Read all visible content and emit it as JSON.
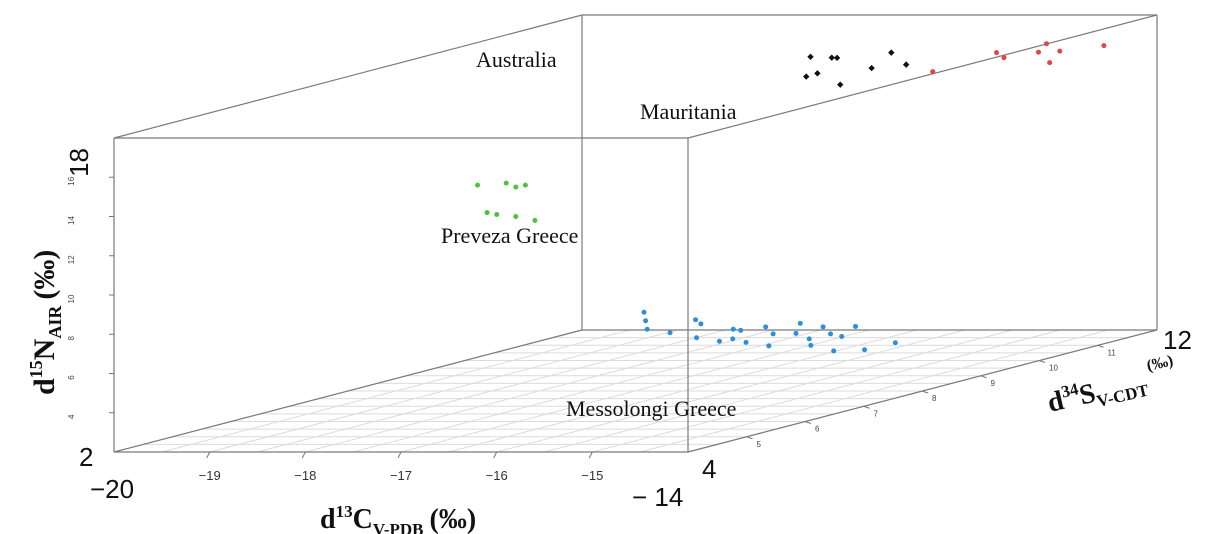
{
  "chart_data": {
    "type": "scatter3d",
    "x_axis": {
      "label_prefix": "d",
      "label_sup": "13",
      "label_main": "C",
      "label_sub": "V-PDB",
      "label_unit": "(‰)",
      "ticks": [
        "−19",
        "−18",
        "−17",
        "−16",
        "−15"
      ],
      "end_left": "−20",
      "end_right": "− 14",
      "range": [
        -20,
        -14
      ]
    },
    "y_axis": {
      "label_prefix": "d",
      "label_sup": "34",
      "label_main": "S",
      "label_sub": "V-CDT",
      "label_unit": "(‰)",
      "ticks": [
        "5",
        "6",
        "7",
        "8",
        "9",
        "10",
        "11"
      ],
      "end_low": "4",
      "end_high": "12",
      "range": [
        4,
        12
      ]
    },
    "z_axis": {
      "label_prefix": "d",
      "label_sup": "15",
      "label_main": "N",
      "label_sub": "AIR",
      "label_unit": "(‰)",
      "ticks": [
        "4",
        "6",
        "8",
        "10",
        "12",
        "14",
        "16"
      ],
      "end_low": "2",
      "end_high": "18",
      "range": [
        2,
        18
      ]
    },
    "grid": "floor",
    "groups": [
      {
        "name": "Australia",
        "color": "#111111",
        "marker": "diamond",
        "points": [
          {
            "x": -17.0,
            "y": 11.0,
            "z": 16.7
          },
          {
            "x": -16.9,
            "y": 11.2,
            "z": 16.5
          },
          {
            "x": -16.8,
            "y": 10.6,
            "z": 16.0
          },
          {
            "x": -16.6,
            "y": 10.8,
            "z": 16.8
          },
          {
            "x": -16.5,
            "y": 10.3,
            "z": 16.4
          },
          {
            "x": -16.4,
            "y": 11.4,
            "z": 16.6
          },
          {
            "x": -16.3,
            "y": 10.9,
            "z": 16.2
          },
          {
            "x": -16.2,
            "y": 10.2,
            "z": 15.9
          },
          {
            "x": -16.0,
            "y": 11.0,
            "z": 16.3
          }
        ]
      },
      {
        "name": "Mauritania",
        "color": "#e0444e",
        "marker": "dot",
        "points": [
          {
            "x": -15.6,
            "y": 10.8,
            "z": 16.1
          },
          {
            "x": -15.3,
            "y": 11.4,
            "z": 16.6
          },
          {
            "x": -15.1,
            "y": 11.2,
            "z": 16.5
          },
          {
            "x": -14.9,
            "y": 11.6,
            "z": 16.9
          },
          {
            "x": -14.8,
            "y": 11.3,
            "z": 16.7
          },
          {
            "x": -14.7,
            "y": 11.5,
            "z": 16.6
          },
          {
            "x": -14.5,
            "y": 11.0,
            "z": 16.4
          },
          {
            "x": -14.3,
            "y": 11.6,
            "z": 16.8
          }
        ]
      },
      {
        "name": "Preveza Greece",
        "color": "#4fc13f",
        "marker": "dot",
        "points": [
          {
            "x": -16.2,
            "y": 4.0,
            "z": 15.6
          },
          {
            "x": -16.1,
            "y": 4.0,
            "z": 14.2
          },
          {
            "x": -16.0,
            "y": 4.0,
            "z": 14.1
          },
          {
            "x": -15.9,
            "y": 4.0,
            "z": 15.7
          },
          {
            "x": -15.8,
            "y": 4.0,
            "z": 15.5
          },
          {
            "x": -15.8,
            "y": 4.0,
            "z": 14.0
          },
          {
            "x": -15.7,
            "y": 4.0,
            "z": 15.6
          },
          {
            "x": -15.6,
            "y": 4.0,
            "z": 13.8
          }
        ]
      },
      {
        "name": "Messolongi Greece",
        "color": "#2c8fd8",
        "marker": "dot",
        "points": [
          {
            "x": -16.6,
            "y": 7.5,
            "z": 6.4
          },
          {
            "x": -16.4,
            "y": 7.2,
            "z": 6.2
          },
          {
            "x": -16.2,
            "y": 6.9,
            "z": 6.0
          },
          {
            "x": -16.0,
            "y": 7.4,
            "z": 6.1
          },
          {
            "x": -15.9,
            "y": 6.8,
            "z": 5.9
          },
          {
            "x": -15.7,
            "y": 7.0,
            "z": 6.2
          },
          {
            "x": -15.5,
            "y": 6.6,
            "z": 5.8
          },
          {
            "x": -15.3,
            "y": 6.9,
            "z": 6.0
          },
          {
            "x": -15.2,
            "y": 6.5,
            "z": 5.7
          },
          {
            "x": -15.1,
            "y": 6.7,
            "z": 6.1
          },
          {
            "x": -15.0,
            "y": 6.4,
            "z": 5.9
          },
          {
            "x": -14.9,
            "y": 6.8,
            "z": 6.2
          },
          {
            "x": -14.8,
            "y": 6.3,
            "z": 5.8
          },
          {
            "x": -14.7,
            "y": 6.6,
            "z": 6.0
          },
          {
            "x": -14.6,
            "y": 6.9,
            "z": 6.3
          },
          {
            "x": -14.5,
            "y": 6.2,
            "z": 5.7
          },
          {
            "x": -14.4,
            "y": 6.5,
            "z": 6.1
          },
          {
            "x": -14.3,
            "y": 6.8,
            "z": 6.2
          },
          {
            "x": -14.2,
            "y": 6.4,
            "z": 5.9
          },
          {
            "x": -14.1,
            "y": 6.6,
            "z": 6.0
          },
          {
            "x": -14.0,
            "y": 6.1,
            "z": 5.8
          },
          {
            "x": -13.9,
            "y": 6.7,
            "z": 6.3
          },
          {
            "x": -13.8,
            "y": 6.3,
            "z": 6.1
          },
          {
            "x": -13.7,
            "y": 6.0,
            "z": 5.6
          },
          {
            "x": -13.5,
            "y": 6.2,
            "z": 5.5
          },
          {
            "x": -13.3,
            "y": 6.4,
            "z": 5.7
          }
        ]
      }
    ]
  }
}
